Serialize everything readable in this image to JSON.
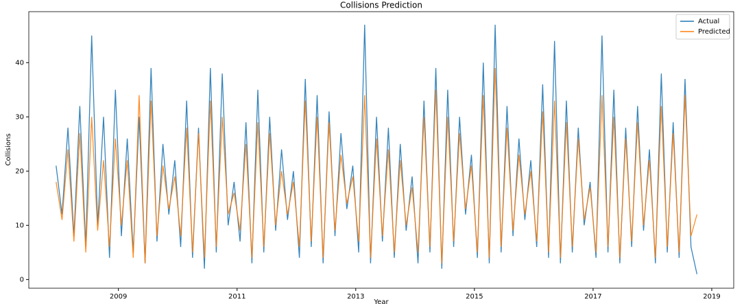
{
  "chart_data": {
    "type": "line",
    "title": "Collisions Prediction",
    "x_label": "Year",
    "y_label": "Collisions",
    "x": [
      2007.95,
      2008.05,
      2008.15,
      2008.25,
      2008.35,
      2008.45,
      2008.55,
      2008.65,
      2008.75,
      2008.85,
      2008.95,
      2009.05,
      2009.15,
      2009.25,
      2009.35,
      2009.45,
      2009.55,
      2009.65,
      2009.75,
      2009.85,
      2009.95,
      2010.05,
      2010.15,
      2010.25,
      2010.35,
      2010.45,
      2010.55,
      2010.65,
      2010.75,
      2010.85,
      2010.95,
      2011.05,
      2011.15,
      2011.25,
      2011.35,
      2011.45,
      2011.55,
      2011.65,
      2011.75,
      2011.85,
      2011.95,
      2012.05,
      2012.15,
      2012.25,
      2012.35,
      2012.45,
      2012.55,
      2012.65,
      2012.75,
      2012.85,
      2012.95,
      2013.05,
      2013.15,
      2013.25,
      2013.35,
      2013.45,
      2013.55,
      2013.65,
      2013.75,
      2013.85,
      2013.95,
      2014.05,
      2014.15,
      2014.25,
      2014.35,
      2014.45,
      2014.55,
      2014.65,
      2014.75,
      2014.85,
      2014.95,
      2015.05,
      2015.15,
      2015.25,
      2015.35,
      2015.45,
      2015.55,
      2015.65,
      2015.75,
      2015.85,
      2015.95,
      2016.05,
      2016.15,
      2016.25,
      2016.35,
      2016.45,
      2016.55,
      2016.65,
      2016.75,
      2016.85,
      2016.95,
      2017.05,
      2017.15,
      2017.25,
      2017.35,
      2017.45,
      2017.55,
      2017.65,
      2017.75,
      2017.85,
      2017.95,
      2018.05,
      2018.15,
      2018.25,
      2018.35,
      2018.45,
      2018.55,
      2018.65,
      2018.75
    ],
    "series": [
      {
        "name": "Actual",
        "color": "#1f77b4",
        "values": [
          21,
          12,
          28,
          8,
          32,
          6,
          45,
          10,
          30,
          4,
          35,
          8,
          26,
          5,
          30,
          3,
          39,
          7,
          25,
          12,
          22,
          6,
          33,
          4,
          28,
          2,
          39,
          5,
          38,
          10,
          18,
          7,
          29,
          3,
          35,
          5,
          30,
          9,
          24,
          11,
          20,
          4,
          37,
          6,
          34,
          3,
          31,
          8,
          27,
          13,
          21,
          5,
          47,
          3,
          30,
          7,
          28,
          4,
          25,
          9,
          19,
          3,
          33,
          5,
          39,
          2,
          35,
          6,
          30,
          12,
          23,
          4,
          40,
          3,
          47,
          5,
          32,
          8,
          26,
          11,
          22,
          6,
          36,
          4,
          44,
          3,
          33,
          5,
          28,
          10,
          18,
          4,
          45,
          5,
          35,
          3,
          28,
          6,
          32,
          9,
          24,
          3,
          38,
          5,
          29,
          4,
          37,
          6,
          1
        ]
      },
      {
        "name": "Predicted",
        "color": "#ff7f0e",
        "values": [
          18,
          11,
          24,
          7,
          27,
          5,
          30,
          9,
          22,
          6,
          26,
          10,
          22,
          4,
          34,
          3,
          33,
          8,
          21,
          13,
          19,
          8,
          28,
          5,
          27,
          4,
          33,
          6,
          30,
          12,
          16,
          9,
          25,
          4,
          29,
          6,
          27,
          10,
          20,
          12,
          18,
          6,
          33,
          7,
          30,
          4,
          29,
          9,
          23,
          14,
          19,
          7,
          34,
          4,
          26,
          8,
          24,
          5,
          22,
          10,
          17,
          5,
          30,
          6,
          35,
          3,
          30,
          7,
          27,
          13,
          21,
          5,
          34,
          4,
          39,
          6,
          28,
          9,
          23,
          12,
          20,
          7,
          31,
          5,
          33,
          4,
          29,
          6,
          26,
          11,
          17,
          5,
          34,
          6,
          30,
          4,
          26,
          7,
          29,
          10,
          22,
          4,
          32,
          6,
          27,
          5,
          34,
          8,
          12
        ]
      }
    ],
    "xlim": [
      2007.49,
      2019.37
    ],
    "xticks": [
      2009,
      2011,
      2013,
      2015,
      2017,
      2019
    ],
    "ylim": [
      -1.6,
      49.4
    ],
    "yticks": [
      0,
      10,
      20,
      30,
      40
    ],
    "legend": "upper right"
  }
}
